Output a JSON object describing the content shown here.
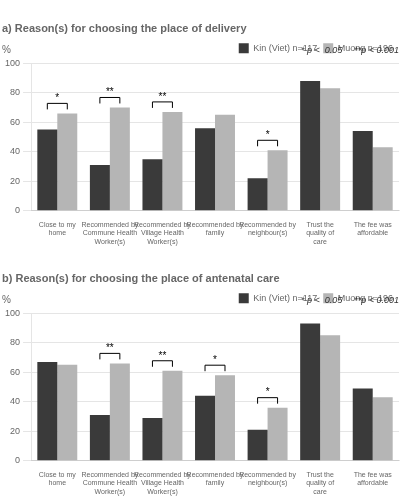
{
  "chart_data": [
    {
      "type": "bar",
      "title": "a) Reason(s) for choosing the place of delivery",
      "categories": [
        "Close to my home",
        "Recommended by\nCommune Health\nWorker(s)",
        "Recommended by\nVillage Health\nWorker(s)",
        "Recommended by\nfamily",
        "Recommended by\nneighbour(s)",
        "Trust the quality of\ncare",
        "The fee was\naffordable"
      ],
      "series": [
        {
          "name": "Kin (Viet) n=117",
          "color": "#3a3a3a",
          "values": [
            55,
            31,
            35,
            56,
            22,
            88,
            54
          ]
        },
        {
          "name": "Muong n=196",
          "color": "#b5b5b5",
          "values": [
            66,
            70,
            67,
            65,
            41,
            83,
            43
          ]
        }
      ],
      "ylabel": "%",
      "ylim": [
        0,
        100
      ],
      "yticks": [
        0,
        20,
        40,
        60,
        80,
        100
      ],
      "grid": true,
      "legend": "top",
      "annotations": [
        {
          "category": "Close to my home",
          "text": "*"
        },
        {
          "category": "Recommended by\nCommune Health\nWorker(s)",
          "text": "**"
        },
        {
          "category": "Recommended by\nVillage Health\nWorker(s)",
          "text": "**"
        },
        {
          "category": "Recommended by\nneighbour(s)",
          "text": "*"
        }
      ],
      "sig_notes": [
        "* p <  0.05",
        "**p < 0.001"
      ]
    },
    {
      "type": "bar",
      "title": "b) Reason(s) for choosing the place of antenatal care",
      "categories": [
        "Close to my home",
        "Recommended by\nCommune Health\nWorker(s)",
        "Recommended by\nVillage Health\nWorker(s)",
        "Recommended by\nfamily",
        "Recommended by\nneighbour(s)",
        "Trust the quality of\ncare",
        "The fee was\naffordable"
      ],
      "series": [
        {
          "name": "Kin (Viet) n=117",
          "color": "#3a3a3a",
          "values": [
            67,
            31,
            29,
            44,
            21,
            93,
            49
          ]
        },
        {
          "name": "Muong n=196",
          "color": "#b5b5b5",
          "values": [
            65,
            66,
            61,
            58,
            36,
            85,
            43
          ]
        }
      ],
      "ylabel": "%",
      "ylim": [
        0,
        100
      ],
      "yticks": [
        0,
        20,
        40,
        60,
        80,
        100
      ],
      "grid": true,
      "legend": "top",
      "annotations": [
        {
          "category": "Recommended by\nCommune Health\nWorker(s)",
          "text": "**"
        },
        {
          "category": "Recommended by\nVillage Health\nWorker(s)",
          "text": "**"
        },
        {
          "category": "Recommended by\nfamily",
          "text": "*"
        },
        {
          "category": "Recommended by\nneighbour(s)",
          "text": "*"
        }
      ],
      "sig_notes": [
        "* p <  0.05",
        "**p < 0.001"
      ]
    }
  ]
}
